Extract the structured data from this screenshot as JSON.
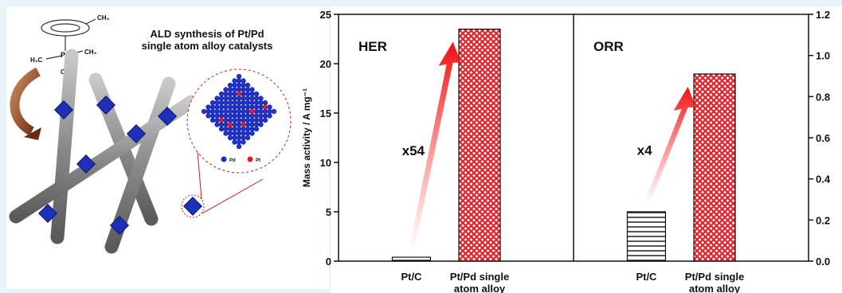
{
  "illustration": {
    "title": "ALD synthesis of Pt/Pd\nsingle atom alloy catalysts",
    "molecule": {
      "methyl_top": "CH₃",
      "methyl_left": "H₃C",
      "metal": "Pt",
      "methyl_right": "CH₃",
      "methyl_bottom": "CH₃"
    },
    "legend": {
      "pd": "Pd",
      "pt": "Pt"
    }
  },
  "chart_data": [
    {
      "type": "bar",
      "title": "HER",
      "categories": [
        "Pt/C",
        "Pt/Pd single\natom alloy"
      ],
      "values": [
        0.4,
        23.5
      ],
      "colors": [
        "#ffffff",
        "#e8202a"
      ],
      "ylabel": "Mass activity / A mg⁻¹",
      "ylim": [
        0,
        25
      ],
      "yticks": [
        0,
        5,
        10,
        15,
        20,
        25
      ],
      "annotation": "x54"
    },
    {
      "type": "bar",
      "title": "ORR",
      "categories": [
        "Pt/C",
        "Pt/Pd single\natom alloy"
      ],
      "values": [
        0.24,
        0.91
      ],
      "colors": [
        "#ffffff",
        "#e8202a"
      ],
      "ylabel": "Mass activity / A mg⁻¹",
      "ylim": [
        0,
        1.2
      ],
      "yticks": [
        {
          "value": 0,
          "label": "0.0"
        },
        0.2,
        0.4,
        0.6,
        0.8,
        {
          "value": 1,
          "label": "1.0"
        },
        1.2
      ],
      "annotation": "x4"
    }
  ]
}
